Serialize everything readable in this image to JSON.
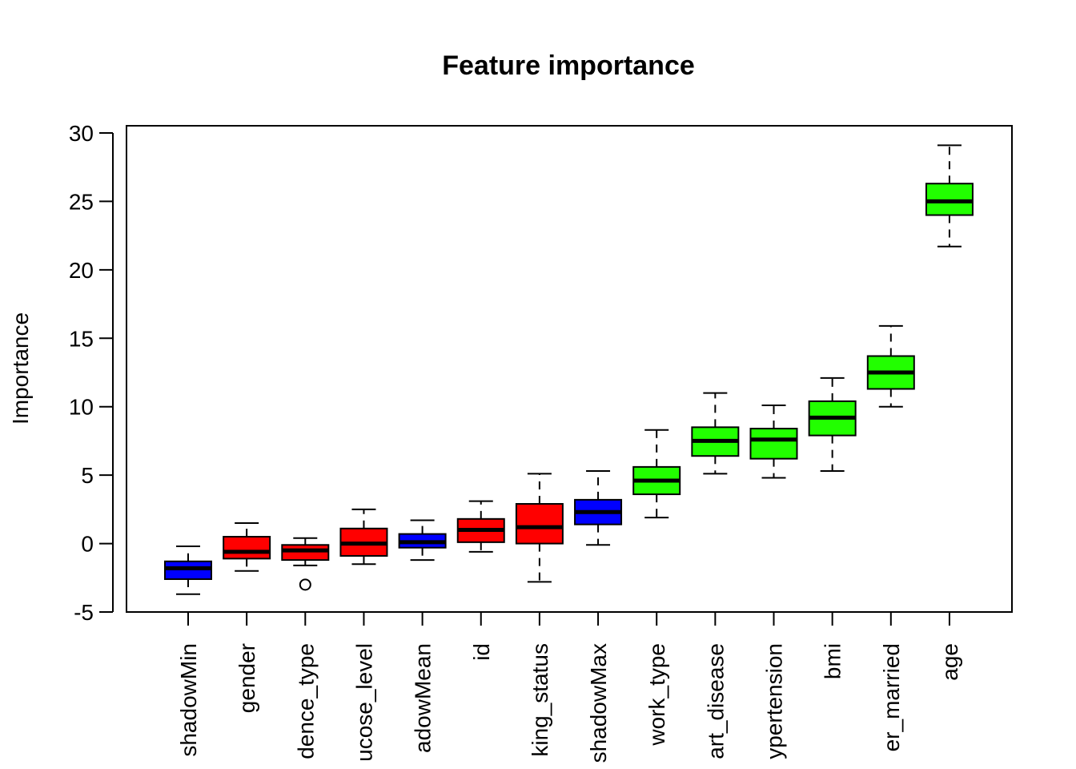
{
  "chart_data": {
    "type": "box",
    "title": "Feature importance",
    "xlabel": "",
    "ylabel": "Importance",
    "ylim": [
      -5,
      30
    ],
    "yticks": [
      -5,
      0,
      5,
      10,
      15,
      20,
      25,
      30
    ],
    "grid": false,
    "legend": "none",
    "colors": {
      "shadow": "#0000ff",
      "rejected": "#ff0000",
      "confirmed": "#22ff00"
    },
    "boxes": [
      {
        "label": "shadowMin",
        "status": "shadow",
        "whisker_low": -3.7,
        "q1": -2.6,
        "median": -1.8,
        "q3": -1.3,
        "whisker_high": -0.2,
        "outliers": []
      },
      {
        "label": "gender",
        "status": "rejected",
        "whisker_low": -2.0,
        "q1": -1.1,
        "median": -0.6,
        "q3": 0.5,
        "whisker_high": 1.5,
        "outliers": []
      },
      {
        "label": "dence_type",
        "status": "rejected",
        "whisker_low": -1.6,
        "q1": -1.2,
        "median": -0.5,
        "q3": -0.1,
        "whisker_high": 0.4,
        "outliers": [
          -3.0
        ]
      },
      {
        "label": "ucose_level",
        "status": "rejected",
        "whisker_low": -1.5,
        "q1": -0.9,
        "median": 0.0,
        "q3": 1.1,
        "whisker_high": 2.5,
        "outliers": []
      },
      {
        "label": "adowMean",
        "status": "shadow",
        "whisker_low": -1.2,
        "q1": -0.3,
        "median": 0.1,
        "q3": 0.7,
        "whisker_high": 1.7,
        "outliers": []
      },
      {
        "label": "id",
        "status": "rejected",
        "whisker_low": -0.6,
        "q1": 0.1,
        "median": 1.0,
        "q3": 1.8,
        "whisker_high": 3.1,
        "outliers": []
      },
      {
        "label": "king_status",
        "status": "rejected",
        "whisker_low": -2.8,
        "q1": 0.0,
        "median": 1.2,
        "q3": 2.9,
        "whisker_high": 5.1,
        "outliers": []
      },
      {
        "label": "shadowMax",
        "status": "shadow",
        "whisker_low": -0.1,
        "q1": 1.4,
        "median": 2.3,
        "q3": 3.2,
        "whisker_high": 5.3,
        "outliers": []
      },
      {
        "label": "work_type",
        "status": "confirmed",
        "whisker_low": 1.9,
        "q1": 3.6,
        "median": 4.6,
        "q3": 5.6,
        "whisker_high": 8.3,
        "outliers": []
      },
      {
        "label": "art_disease",
        "status": "confirmed",
        "whisker_low": 5.1,
        "q1": 6.4,
        "median": 7.5,
        "q3": 8.5,
        "whisker_high": 11.0,
        "outliers": []
      },
      {
        "label": "ypertension",
        "status": "confirmed",
        "whisker_low": 4.8,
        "q1": 6.2,
        "median": 7.6,
        "q3": 8.4,
        "whisker_high": 10.1,
        "outliers": []
      },
      {
        "label": "bmi",
        "status": "confirmed",
        "whisker_low": 5.3,
        "q1": 7.9,
        "median": 9.2,
        "q3": 10.4,
        "whisker_high": 12.1,
        "outliers": []
      },
      {
        "label": "er_married",
        "status": "confirmed",
        "whisker_low": 10.0,
        "q1": 11.3,
        "median": 12.5,
        "q3": 13.7,
        "whisker_high": 15.9,
        "outliers": []
      },
      {
        "label": "age",
        "status": "confirmed",
        "whisker_low": 21.7,
        "q1": 24.0,
        "median": 25.0,
        "q3": 26.3,
        "whisker_high": 29.1,
        "outliers": []
      }
    ]
  }
}
